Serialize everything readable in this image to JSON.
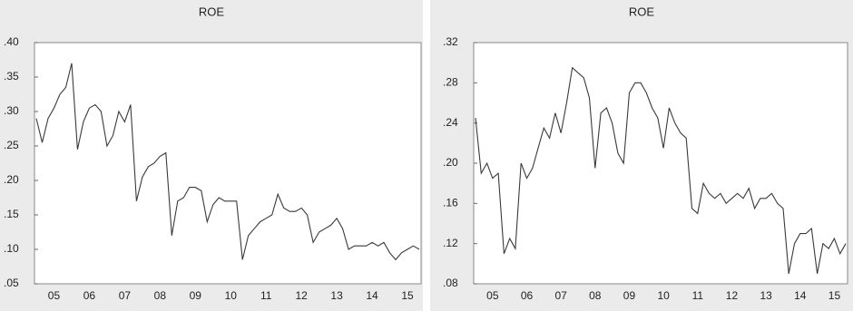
{
  "chart_data": [
    {
      "type": "line",
      "title": "ROE",
      "categories": [
        null,
        null,
        null,
        "05",
        null,
        null,
        null,
        null,
        null,
        "06",
        null,
        null,
        null,
        null,
        null,
        "07",
        null,
        null,
        null,
        null,
        null,
        "08",
        null,
        null,
        null,
        null,
        null,
        "09",
        null,
        null,
        null,
        null,
        null,
        "10",
        null,
        null,
        null,
        null,
        null,
        "11",
        null,
        null,
        null,
        null,
        null,
        "12",
        null,
        null,
        null,
        null,
        null,
        "13",
        null,
        null,
        null,
        null,
        null,
        "14",
        null,
        null,
        null,
        null,
        null,
        "15",
        null,
        null
      ],
      "series": [
        {
          "color": "#3a3a3a",
          "values": [
            0.29,
            0.255,
            0.29,
            0.305,
            0.325,
            0.335,
            0.37,
            0.245,
            0.285,
            0.305,
            0.31,
            0.3,
            0.25,
            0.265,
            0.3,
            0.285,
            0.31,
            0.17,
            0.205,
            0.22,
            0.225,
            0.235,
            0.24,
            0.12,
            0.17,
            0.175,
            0.19,
            0.19,
            0.185,
            0.14,
            0.165,
            0.175,
            0.17,
            0.17,
            0.17,
            0.085,
            0.12,
            0.13,
            0.14,
            0.145,
            0.15,
            0.18,
            0.16,
            0.155,
            0.155,
            0.16,
            0.15,
            0.11,
            0.125,
            0.13,
            0.135,
            0.145,
            0.13,
            0.1,
            0.105,
            0.105,
            0.105,
            0.11,
            0.105,
            0.11,
            0.095,
            0.085,
            0.095,
            0.1,
            0.105,
            0.1
          ]
        }
      ],
      "ylim": [
        0.05,
        0.4
      ],
      "yticks": [
        {
          "value": 0.05,
          "label": ".05"
        },
        {
          "value": 0.1,
          "label": ".10"
        },
        {
          "value": 0.15,
          "label": ".15"
        },
        {
          "value": 0.2,
          "label": ".20"
        },
        {
          "value": 0.25,
          "label": ".25"
        },
        {
          "value": 0.3,
          "label": ".30"
        },
        {
          "value": 0.35,
          "label": ".35"
        },
        {
          "value": 0.4,
          "label": ".40"
        }
      ]
    },
    {
      "type": "line",
      "title": "ROE",
      "categories": [
        null,
        null,
        null,
        "05",
        null,
        null,
        null,
        null,
        null,
        "06",
        null,
        null,
        null,
        null,
        null,
        "07",
        null,
        null,
        null,
        null,
        null,
        "08",
        null,
        null,
        null,
        null,
        null,
        "09",
        null,
        null,
        null,
        null,
        null,
        "10",
        null,
        null,
        null,
        null,
        null,
        "11",
        null,
        null,
        null,
        null,
        null,
        "12",
        null,
        null,
        null,
        null,
        null,
        "13",
        null,
        null,
        null,
        null,
        null,
        "14",
        null,
        null,
        null,
        null,
        null,
        "15",
        null,
        null
      ],
      "series": [
        {
          "color": "#3a3a3a",
          "values": [
            0.245,
            0.19,
            0.2,
            0.185,
            0.19,
            0.11,
            0.125,
            0.115,
            0.2,
            0.185,
            0.195,
            0.215,
            0.235,
            0.225,
            0.25,
            0.23,
            0.26,
            0.295,
            0.29,
            0.285,
            0.265,
            0.195,
            0.25,
            0.255,
            0.24,
            0.21,
            0.2,
            0.27,
            0.28,
            0.28,
            0.27,
            0.255,
            0.245,
            0.215,
            0.255,
            0.24,
            0.23,
            0.225,
            0.155,
            0.15,
            0.18,
            0.17,
            0.165,
            0.17,
            0.16,
            0.165,
            0.17,
            0.165,
            0.175,
            0.155,
            0.165,
            0.165,
            0.17,
            0.16,
            0.155,
            0.09,
            0.12,
            0.13,
            0.13,
            0.135,
            0.09,
            0.12,
            0.115,
            0.125,
            0.11,
            0.12
          ]
        }
      ],
      "ylim": [
        0.08,
        0.32
      ],
      "yticks": [
        {
          "value": 0.08,
          "label": ".08"
        },
        {
          "value": 0.12,
          "label": ".12"
        },
        {
          "value": 0.16,
          "label": ".16"
        },
        {
          "value": 0.2,
          "label": ".20"
        },
        {
          "value": 0.24,
          "label": ".24"
        },
        {
          "value": 0.28,
          "label": ".28"
        },
        {
          "value": 0.32,
          "label": ".32"
        }
      ]
    }
  ]
}
